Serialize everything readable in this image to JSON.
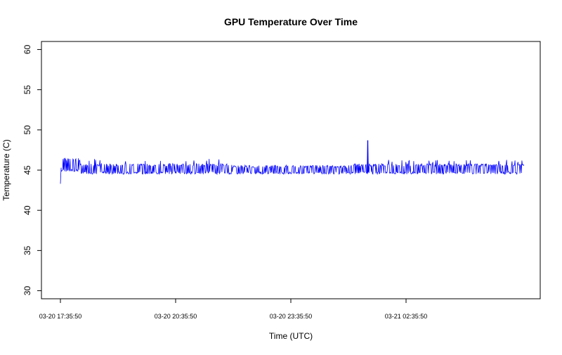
{
  "chart_data": {
    "type": "line",
    "title": "GPU Temperature Over Time",
    "xlabel": "Time (UTC)",
    "ylabel": "Temperature (C)",
    "x_start": "03-20 17:35:50",
    "x_end": "03-21 05:40:00",
    "xlim": [
      "03-20 17:35:50",
      "03-21 05:40:00"
    ],
    "ylim": [
      29,
      61
    ],
    "x_ticks": [
      {
        "label": "03-20 17:35:50"
      },
      {
        "label": "03-20 20:35:50"
      },
      {
        "label": "03-20 23:35:50"
      },
      {
        "label": "03-21 02:35:50"
      }
    ],
    "y_ticks": [
      {
        "value": 30,
        "label": "30"
      },
      {
        "value": 35,
        "label": "35"
      },
      {
        "value": 40,
        "label": "40"
      },
      {
        "value": 45,
        "label": "45"
      },
      {
        "value": 50,
        "label": "50"
      },
      {
        "value": 55,
        "label": "55"
      },
      {
        "value": 60,
        "label": "60"
      }
    ],
    "grid": false,
    "legend": "none",
    "series": [
      {
        "color": "#0000ff",
        "base_values": [
          44,
          45,
          45,
          46,
          46,
          46,
          45,
          45,
          45,
          45,
          45,
          45,
          45,
          45,
          45,
          45,
          45,
          45,
          45,
          45,
          45,
          45,
          45,
          45,
          45,
          45
        ],
        "band_low": 44.5,
        "band_high": 46.5,
        "values_note_range": [
          43.3,
          48.7
        ],
        "spike": {
          "x": "03-21 01:36:00",
          "value": 48.7
        },
        "initial_min": 43.3
      }
    ]
  }
}
